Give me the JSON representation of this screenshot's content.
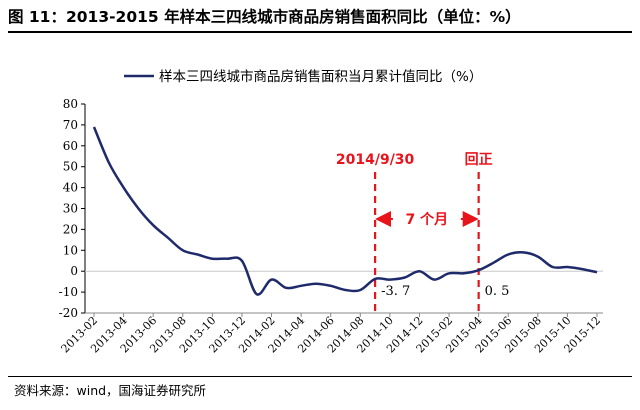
{
  "figure_title": "图 11：2013-2015 年样本三四线城市商品房销售面积同比（单位：%）",
  "source": "资料来源：wind，国海证券研究所",
  "colors": {
    "series": "#1f2a6b",
    "annotation": "#e8141c",
    "axis": "#000000",
    "gridline": "#c8c8c8"
  },
  "chart_data": {
    "type": "line",
    "title": "",
    "xlabel": "",
    "ylabel": "",
    "ylim": [
      -20,
      80
    ],
    "yticks": [
      "80",
      "70",
      "60",
      "50",
      "40",
      "30",
      "20",
      "10",
      "0",
      "-10",
      "-20"
    ],
    "x_tick_labels": [
      "2013-02",
      "2013-04",
      "2013-06",
      "2013-08",
      "2013-10",
      "2013-12",
      "2014-02",
      "2014-04",
      "2014-06",
      "2014-08",
      "2014-10",
      "2014-12",
      "2015-02",
      "2015-04",
      "2015-06",
      "2015-08",
      "2015-10",
      "2015-12"
    ],
    "legend": "top-center",
    "grid": false,
    "series": [
      {
        "name": "样本三四线城市商品房销售面积当月累计值同比（%）",
        "x": [
          "2013-02",
          "2013-03",
          "2013-04",
          "2013-05",
          "2013-06",
          "2013-07",
          "2013-08",
          "2013-09",
          "2013-10",
          "2013-11",
          "2013-12",
          "2014-01",
          "2014-02",
          "2014-03",
          "2014-04",
          "2014-05",
          "2014-06",
          "2014-07",
          "2014-08",
          "2014-09",
          "2014-10",
          "2014-11",
          "2014-12",
          "2015-01",
          "2015-02",
          "2015-03",
          "2015-04",
          "2015-05",
          "2015-06",
          "2015-07",
          "2015-08",
          "2015-09",
          "2015-10",
          "2015-11",
          "2015-12"
        ],
        "values": [
          69,
          52,
          40,
          30,
          22,
          16,
          10,
          8,
          6,
          6,
          5,
          -11,
          -4,
          -8,
          -7,
          -6,
          -7,
          -9,
          -9,
          -3.7,
          -4,
          -3,
          0,
          -4,
          -1,
          -1,
          0.5,
          4,
          8,
          9,
          7,
          2,
          2,
          1,
          -0.5
        ]
      }
    ],
    "annotations": [
      {
        "kind": "vline",
        "x": "2014-09",
        "label": "2014/9/30"
      },
      {
        "kind": "vline",
        "x": "2015-04",
        "label": "回正"
      },
      {
        "kind": "span-arrow",
        "from": "2014-09",
        "to": "2015-04",
        "label": "7 个月"
      },
      {
        "kind": "point-label",
        "x": "2014-09",
        "label": "-3. 7"
      },
      {
        "kind": "point-label",
        "x": "2015-04",
        "label": "0. 5"
      }
    ]
  }
}
